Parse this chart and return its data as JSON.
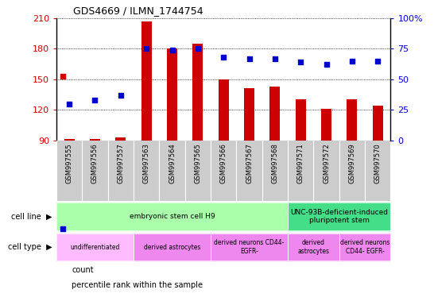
{
  "title": "GDS4669 / ILMN_1744754",
  "samples": [
    "GSM997555",
    "GSM997556",
    "GSM997557",
    "GSM997563",
    "GSM997564",
    "GSM997565",
    "GSM997566",
    "GSM997567",
    "GSM997568",
    "GSM997571",
    "GSM997572",
    "GSM997569",
    "GSM997570"
  ],
  "counts": [
    91,
    91,
    93,
    207,
    180,
    185,
    150,
    141,
    143,
    130,
    121,
    130,
    124
  ],
  "percentiles": [
    30,
    33,
    37,
    75,
    74,
    75,
    68,
    67,
    67,
    64,
    62,
    65,
    65
  ],
  "ylim_left": [
    90,
    210
  ],
  "ylim_right": [
    0,
    100
  ],
  "yticks_left": [
    90,
    120,
    150,
    180,
    210
  ],
  "yticks_right": [
    0,
    25,
    50,
    75,
    100
  ],
  "ytick_right_labels": [
    "0",
    "25",
    "50",
    "75",
    "100%"
  ],
  "bar_color": "#cc0000",
  "dot_color": "#0000cc",
  "cell_line_groups": [
    {
      "label": "embryonic stem cell H9",
      "start": 0,
      "end": 8,
      "color": "#aaffaa"
    },
    {
      "label": "UNC-93B-deficient-induced\npluripotent stem",
      "start": 9,
      "end": 12,
      "color": "#44dd88"
    }
  ],
  "cell_type_groups": [
    {
      "label": "undifferentiated",
      "start": 0,
      "end": 2,
      "color": "#ffbbff"
    },
    {
      "label": "derived astrocytes",
      "start": 3,
      "end": 5,
      "color": "#ee88ee"
    },
    {
      "label": "derived neurons CD44-\nEGFR-",
      "start": 6,
      "end": 8,
      "color": "#ee88ee"
    },
    {
      "label": "derived\nastrocytes",
      "start": 9,
      "end": 10,
      "color": "#ee88ee"
    },
    {
      "label": "derived neurons\nCD44- EGFR-",
      "start": 11,
      "end": 12,
      "color": "#ee88ee"
    }
  ],
  "legend_count_label": "count",
  "legend_pct_label": "percentile rank within the sample",
  "left_axis_color": "#cc0000",
  "right_axis_color": "#0000cc",
  "bar_width": 0.4,
  "xtick_bg_color": "#cccccc"
}
